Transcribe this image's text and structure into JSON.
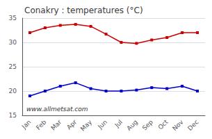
{
  "chart_data": {
    "type": "line",
    "title": "Conakry : temperatures (°C)",
    "categories": [
      "Jan",
      "Feb",
      "Mar",
      "Apr",
      "May",
      "Jun",
      "Jul",
      "Aug",
      "Sep",
      "Oct",
      "Nov",
      "Dec"
    ],
    "series": [
      {
        "color": "#cc0000",
        "values": [
          32.0,
          33.0,
          33.5,
          33.7,
          33.3,
          31.7,
          30.0,
          29.8,
          30.5,
          31.0,
          32.0,
          32.0
        ]
      },
      {
        "color": "#0000cc",
        "values": [
          19.0,
          20.0,
          21.0,
          21.7,
          20.5,
          20.0,
          20.0,
          20.2,
          20.7,
          20.5,
          21.0,
          20.0
        ]
      }
    ],
    "ylim": [
      15,
      35
    ],
    "yticks": [
      15,
      20,
      25,
      30,
      35
    ],
    "grid": true,
    "marker": "square",
    "annotations": [
      "www.allmetsat.com"
    ]
  }
}
